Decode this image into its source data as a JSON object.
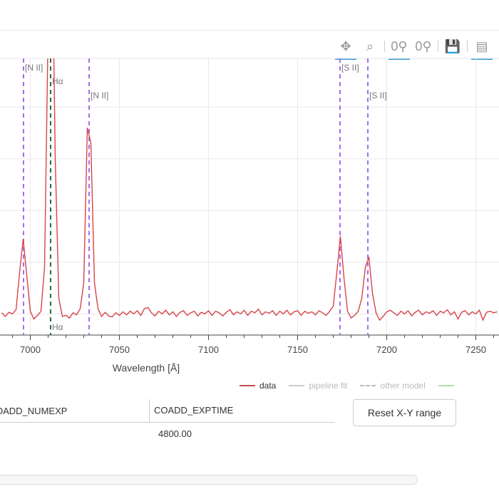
{
  "toolbar": {
    "tools": [
      {
        "name": "pan",
        "glyph": "✥",
        "active": true
      },
      {
        "name": "box-zoom",
        "glyph": "⌕",
        "active": false
      },
      {
        "name": "wheel-zoom-x",
        "glyph": "0⚲",
        "active": true
      },
      {
        "name": "wheel-zoom-y",
        "glyph": "0⚲",
        "active": false
      },
      {
        "name": "save",
        "glyph": "💾",
        "active": false
      },
      {
        "name": "hover",
        "glyph": "▤",
        "active": true
      }
    ]
  },
  "chart_data": {
    "type": "line",
    "xlabel": "Wavelength [Å]",
    "ylabel": "",
    "xlim": [
      6983,
      7263
    ],
    "ylim": [
      -0.41,
      4.94
    ],
    "xticks": [
      7000,
      7050,
      7100,
      7150,
      7200,
      7250
    ],
    "xtick_labels": [
      "7000",
      "7050",
      "7100",
      "7150",
      "7200",
      "7250"
    ],
    "yticks": [
      0,
      1,
      2,
      3,
      4
    ],
    "grid": true,
    "legend_position": "bottom-right",
    "series": [
      {
        "name": "data",
        "color": "#d9434a",
        "x": [
          6984,
          6986,
          6988,
          6990,
          6992,
          6994,
          6996,
          6998,
          7000,
          7002,
          7004,
          7006,
          7008,
          7010,
          7012,
          7014,
          7016,
          7018,
          7020,
          7022,
          7024,
          7026,
          7028,
          7030,
          7032,
          7034,
          7036,
          7038,
          7040,
          7042,
          7044,
          7046,
          7048,
          7050,
          7052,
          7054,
          7056,
          7058,
          7060,
          7062,
          7064,
          7066,
          7068,
          7070,
          7072,
          7074,
          7076,
          7078,
          7080,
          7082,
          7084,
          7086,
          7088,
          7090,
          7092,
          7094,
          7096,
          7098,
          7100,
          7102,
          7104,
          7106,
          7108,
          7110,
          7112,
          7114,
          7116,
          7118,
          7120,
          7122,
          7124,
          7126,
          7128,
          7130,
          7132,
          7134,
          7136,
          7138,
          7140,
          7142,
          7144,
          7146,
          7148,
          7150,
          7152,
          7154,
          7156,
          7158,
          7160,
          7162,
          7164,
          7166,
          7168,
          7170,
          7172,
          7174,
          7176,
          7178,
          7180,
          7182,
          7184,
          7186,
          7188,
          7190,
          7192,
          7194,
          7196,
          7198,
          7200,
          7202,
          7204,
          7206,
          7208,
          7210,
          7212,
          7214,
          7216,
          7218,
          7220,
          7222,
          7224,
          7226,
          7228,
          7230,
          7232,
          7234,
          7236,
          7238,
          7240,
          7242,
          7244,
          7246,
          7248,
          7250,
          7252,
          7254,
          7256,
          7258,
          7260,
          7262
        ],
        "y": [
          0.02,
          -0.05,
          0.03,
          0.0,
          0.08,
          0.8,
          1.45,
          0.75,
          0.05,
          -0.1,
          -0.03,
          0.05,
          0.9,
          5.5,
          8.0,
          3.0,
          0.3,
          -0.05,
          -0.03,
          -0.08,
          0.02,
          -0.02,
          0.1,
          0.6,
          3.6,
          3.3,
          0.6,
          0.1,
          -0.05,
          0.03,
          -0.04,
          -0.06,
          0.02,
          -0.03,
          0.04,
          -0.02,
          0.05,
          0.0,
          0.06,
          -0.03,
          0.1,
          0.12,
          0.02,
          -0.04,
          0.05,
          0.0,
          0.07,
          -0.02,
          0.04,
          -0.05,
          0.03,
          0.06,
          -0.03,
          0.02,
          0.05,
          -0.04,
          0.03,
          0.0,
          0.06,
          -0.03,
          0.05,
          0.02,
          -0.04,
          0.03,
          0.08,
          -0.02,
          0.04,
          0.0,
          0.07,
          -0.03,
          0.05,
          0.02,
          0.09,
          -0.02,
          0.04,
          0.01,
          0.06,
          -0.03,
          0.05,
          0.0,
          0.07,
          -0.02,
          0.04,
          0.06,
          -0.03,
          0.05,
          0.01,
          0.04,
          -0.02,
          0.06,
          0.02,
          -0.03,
          0.05,
          0.15,
          0.8,
          1.5,
          0.7,
          0.05,
          -0.08,
          -0.03,
          0.05,
          0.3,
          0.9,
          1.1,
          0.4,
          0.02,
          -0.12,
          -0.05,
          0.04,
          0.07,
          0.02,
          -0.03,
          0.05,
          0.0,
          0.06,
          -0.04,
          0.03,
          0.07,
          -0.02,
          0.04,
          0.01,
          0.06,
          -0.03,
          0.05,
          0.02,
          0.08,
          -0.02,
          0.04,
          -0.1,
          0.03,
          0.06,
          -0.02,
          0.04,
          0.0,
          0.07,
          -0.12,
          0.03,
          0.05,
          0.02,
          0.04
        ]
      }
    ],
    "legend": [
      {
        "label": "data",
        "color": "#c0504d",
        "style": "solid"
      },
      {
        "label": "pipeline fit",
        "color": "#cccccc",
        "style": "solid"
      },
      {
        "label": "other model",
        "color": "#bbbbbb",
        "style": "dashed"
      },
      {
        "label": "",
        "color": "#b5dcae",
        "style": "solid"
      }
    ],
    "line_markers": [
      {
        "label": "[N II]",
        "x": 6996.2,
        "color": "#a66df0",
        "label_pos": "top"
      },
      {
        "label": "Hα",
        "x": 7011.4,
        "color": "#2a6b3c",
        "label_pos": "both"
      },
      {
        "label": "[N II]",
        "x": 7033,
        "color": "#a66df0",
        "label_pos": "upper"
      },
      {
        "label": "[S II]",
        "x": 7173.8,
        "color": "#a66df0",
        "label_pos": "top"
      },
      {
        "label": "[S II]",
        "x": 7189.4,
        "color": "#a66df0",
        "label_pos": "upper"
      }
    ]
  },
  "table": {
    "headers": [
      "OADD_NUMEXP",
      "COADD_EXPTIME"
    ],
    "rows": [
      [
        "",
        "4800.00"
      ]
    ]
  },
  "reset_button": "Reset X-Y range"
}
